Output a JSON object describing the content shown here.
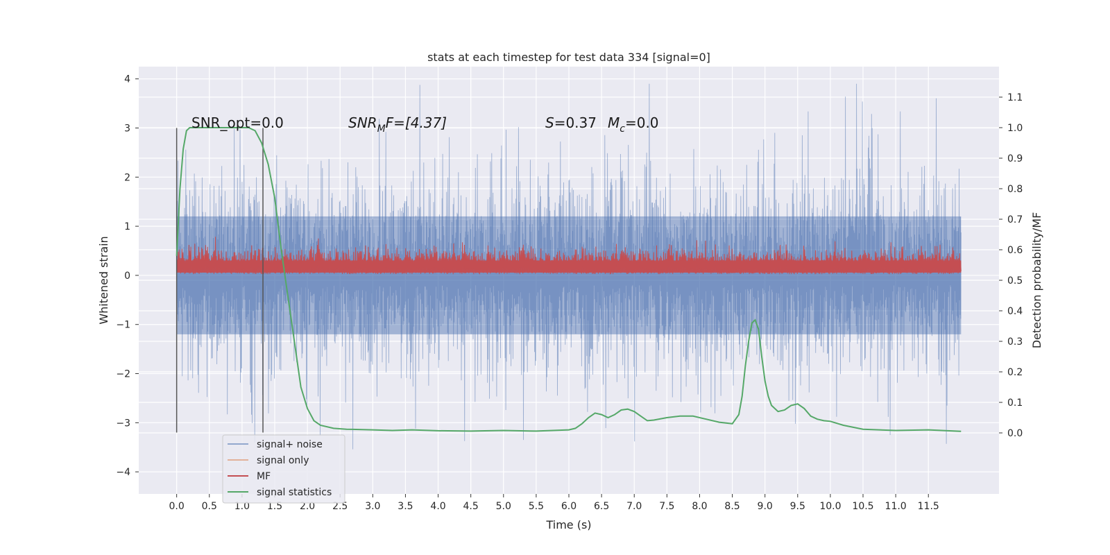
{
  "chart_data": {
    "type": "line",
    "title": "stats at each timestep for test data 334 [signal=0]",
    "xlabel": "Time (s)",
    "ylabel": "Whitened strain",
    "ylabel_right": "Detection probability/MF",
    "xlim": [
      -0.58,
      12.58
    ],
    "ylim": [
      -4.45,
      4.25
    ],
    "ylim_right": [
      -0.2,
      1.2
    ],
    "x_ticks": [
      "0.0",
      "0.5",
      "1.0",
      "1.5",
      "2.0",
      "2.5",
      "3.0",
      "3.5",
      "4.0",
      "4.5",
      "5.0",
      "5.5",
      "6.0",
      "6.5",
      "7.0",
      "7.5",
      "8.0",
      "8.5",
      "9.0",
      "9.5",
      "10.0",
      "10.5",
      "11.0",
      "11.5"
    ],
    "y_ticks": [
      "−4",
      "−3",
      "−2",
      "−1",
      "0",
      "1",
      "2",
      "3",
      "4"
    ],
    "y_ticks_right": [
      "0.0",
      "0.1",
      "0.2",
      "0.3",
      "0.4",
      "0.5",
      "0.6",
      "0.7",
      "0.8",
      "0.9",
      "1.0",
      "1.1"
    ],
    "grid": true,
    "legend_position": "lower-left",
    "annotations": {
      "snr_opt": "SNR_opt=0.0",
      "snr_mf_main": "SNR",
      "snr_mf_sub": "M",
      "snr_mf_rest": "F=[4.37]",
      "s_label": "S",
      "s_value": "=0.37",
      "mc_main": "M",
      "mc_sub": "c",
      "mc_value": "=0.0"
    },
    "vertical_lines": [
      0.0,
      1.32
    ],
    "vertical_line_range": [
      -3.2,
      3.0
    ],
    "series": [
      {
        "name": "signal+ noise",
        "color": "#4c72b0",
        "axis": "left",
        "kind": "noise band",
        "x_range": [
          0.0,
          12.0
        ],
        "y_range": [
          -4.1,
          3.9
        ],
        "typical_abs": 1.2
      },
      {
        "name": "signal only",
        "color": "#dd8452",
        "axis": "left",
        "values": [
          0.0,
          0.0
        ]
      },
      {
        "name": "MF",
        "color": "#c44e52",
        "axis": "right",
        "kind": "noise band",
        "x_range": [
          0.0,
          12.0
        ],
        "y_range": [
          0.52,
          0.67
        ]
      },
      {
        "name": "signal statistics",
        "color": "#55a868",
        "axis": "right",
        "x": [
          0.0,
          0.05,
          0.1,
          0.15,
          0.2,
          0.3,
          0.5,
          0.8,
          1.0,
          1.1,
          1.2,
          1.3,
          1.4,
          1.5,
          1.6,
          1.7,
          1.8,
          1.9,
          2.0,
          2.1,
          2.2,
          2.4,
          2.6,
          3.0,
          3.3,
          3.6,
          4.0,
          4.5,
          5.0,
          5.5,
          6.0,
          6.1,
          6.2,
          6.3,
          6.4,
          6.5,
          6.6,
          6.7,
          6.8,
          6.9,
          7.0,
          7.1,
          7.2,
          7.3,
          7.5,
          7.7,
          7.9,
          8.1,
          8.3,
          8.5,
          8.6,
          8.65,
          8.7,
          8.75,
          8.8,
          8.85,
          8.9,
          8.95,
          9.0,
          9.05,
          9.1,
          9.2,
          9.3,
          9.4,
          9.5,
          9.6,
          9.7,
          9.8,
          9.9,
          10.0,
          10.2,
          10.5,
          11.0,
          11.5,
          12.0
        ],
        "values": [
          0.58,
          0.8,
          0.93,
          0.99,
          1.0,
          1.0,
          1.0,
          1.0,
          1.0,
          1.0,
          0.99,
          0.95,
          0.88,
          0.77,
          0.6,
          0.45,
          0.3,
          0.15,
          0.08,
          0.04,
          0.025,
          0.015,
          0.012,
          0.01,
          0.008,
          0.01,
          0.007,
          0.006,
          0.008,
          0.006,
          0.01,
          0.015,
          0.03,
          0.05,
          0.065,
          0.06,
          0.05,
          0.06,
          0.075,
          0.078,
          0.07,
          0.055,
          0.04,
          0.042,
          0.05,
          0.055,
          0.055,
          0.045,
          0.035,
          0.03,
          0.06,
          0.12,
          0.22,
          0.3,
          0.36,
          0.37,
          0.34,
          0.25,
          0.17,
          0.12,
          0.09,
          0.07,
          0.075,
          0.09,
          0.095,
          0.08,
          0.055,
          0.045,
          0.04,
          0.038,
          0.025,
          0.012,
          0.008,
          0.01,
          0.005
        ]
      }
    ]
  }
}
